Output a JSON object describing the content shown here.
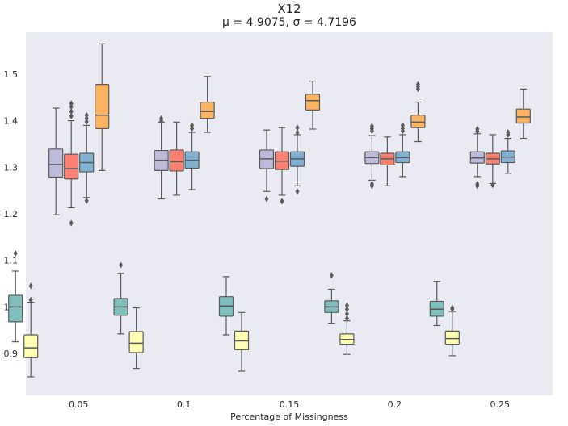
{
  "chart_data": {
    "type": "box",
    "title": "X12",
    "subtitle": "μ = 4.9075, σ = 4.7196",
    "xlabel": "Percentage of Missingness",
    "ylabel": "",
    "categories": [
      "0.05",
      "0.1",
      "0.15",
      "0.2",
      "0.25"
    ],
    "ylim": [
      0.81,
      1.59
    ],
    "yticks": [
      0.9,
      1.0,
      1.1,
      1.2,
      1.3,
      1.4,
      1.5
    ],
    "ytick_labels": [
      "0.9",
      "1.0",
      "1.1",
      "1.2",
      "1.3",
      "1.4",
      "1.5"
    ],
    "grid": false,
    "background": "#eaeaf2",
    "series": [
      {
        "color": "#7fbfbe",
        "boxes": [
          {
            "whislo": 0.925,
            "q1": 0.968,
            "med": 1.0,
            "q3": 1.025,
            "whishi": 1.077,
            "fliers": [
              1.115
            ]
          },
          {
            "whislo": 0.942,
            "q1": 0.982,
            "med": 1.0,
            "q3": 1.018,
            "whishi": 1.072,
            "fliers": [
              1.09
            ]
          },
          {
            "whislo": 0.94,
            "q1": 0.98,
            "med": 1.002,
            "q3": 1.022,
            "whishi": 1.065,
            "fliers": []
          },
          {
            "whislo": 0.965,
            "q1": 0.988,
            "med": 1.0,
            "q3": 1.013,
            "whishi": 1.038,
            "fliers": [
              1.068
            ]
          },
          {
            "whislo": 0.96,
            "q1": 0.98,
            "med": 0.995,
            "q3": 1.012,
            "whishi": 1.055,
            "fliers": []
          }
        ]
      },
      {
        "color": "#ffffb3",
        "boxes": [
          {
            "whislo": 0.85,
            "q1": 0.891,
            "med": 0.912,
            "q3": 0.94,
            "whishi": 1.01,
            "fliers": [
              1.015,
              1.045
            ]
          },
          {
            "whislo": 0.868,
            "q1": 0.902,
            "med": 0.922,
            "q3": 0.947,
            "whishi": 0.998,
            "fliers": []
          },
          {
            "whislo": 0.862,
            "q1": 0.908,
            "med": 0.927,
            "q3": 0.948,
            "whishi": 0.988,
            "fliers": []
          },
          {
            "whislo": 0.898,
            "q1": 0.92,
            "med": 0.93,
            "q3": 0.942,
            "whishi": 0.97,
            "fliers": [
              0.975,
              0.985,
              0.995,
              1.003
            ]
          },
          {
            "whislo": 0.895,
            "q1": 0.92,
            "med": 0.932,
            "q3": 0.948,
            "whishi": 0.99,
            "fliers": [
              0.995,
              0.998
            ]
          }
        ]
      },
      {
        "color": "#bebada",
        "boxes": [
          {
            "whislo": 1.198,
            "q1": 1.279,
            "med": 1.306,
            "q3": 1.339,
            "whishi": 1.427,
            "fliers": []
          },
          {
            "whislo": 1.232,
            "q1": 1.293,
            "med": 1.315,
            "q3": 1.336,
            "whishi": 1.397,
            "fliers": [
              1.4,
              1.405
            ]
          },
          {
            "whislo": 1.248,
            "q1": 1.297,
            "med": 1.318,
            "q3": 1.337,
            "whishi": 1.38,
            "fliers": [
              1.232
            ]
          },
          {
            "whislo": 1.272,
            "q1": 1.308,
            "med": 1.321,
            "q3": 1.333,
            "whishi": 1.368,
            "fliers": [
              1.26,
              1.264,
              1.378,
              1.383,
              1.388
            ]
          },
          {
            "whislo": 1.28,
            "q1": 1.309,
            "med": 1.32,
            "q3": 1.333,
            "whishi": 1.372,
            "fliers": [
              1.26,
              1.264,
              1.377,
              1.382
            ]
          }
        ]
      },
      {
        "color": "#fb8072",
        "boxes": [
          {
            "whislo": 1.213,
            "q1": 1.275,
            "med": 1.297,
            "q3": 1.328,
            "whishi": 1.4,
            "fliers": [
              1.18,
              1.41,
              1.42,
              1.43,
              1.437
            ]
          },
          {
            "whislo": 1.24,
            "q1": 1.292,
            "med": 1.312,
            "q3": 1.337,
            "whishi": 1.397,
            "fliers": []
          },
          {
            "whislo": 1.24,
            "q1": 1.295,
            "med": 1.313,
            "q3": 1.333,
            "whishi": 1.385,
            "fliers": [
              1.227
            ]
          },
          {
            "whislo": 1.26,
            "q1": 1.305,
            "med": 1.318,
            "q3": 1.33,
            "whishi": 1.365,
            "fliers": []
          },
          {
            "whislo": 1.265,
            "q1": 1.307,
            "med": 1.318,
            "q3": 1.33,
            "whishi": 1.37,
            "fliers": [
              1.262
            ]
          }
        ]
      },
      {
        "color": "#80b1d3",
        "boxes": [
          {
            "whislo": 1.235,
            "q1": 1.29,
            "med": 1.31,
            "q3": 1.33,
            "whishi": 1.39,
            "fliers": [
              1.228,
              1.398,
              1.405,
              1.412
            ]
          },
          {
            "whislo": 1.252,
            "q1": 1.298,
            "med": 1.315,
            "q3": 1.333,
            "whishi": 1.375,
            "fliers": [
              1.383,
              1.39
            ]
          },
          {
            "whislo": 1.26,
            "q1": 1.302,
            "med": 1.318,
            "q3": 1.333,
            "whishi": 1.37,
            "fliers": [
              1.248,
              1.375,
              1.385
            ]
          },
          {
            "whislo": 1.28,
            "q1": 1.31,
            "med": 1.321,
            "q3": 1.333,
            "whishi": 1.37,
            "fliers": [
              1.378,
              1.383,
              1.39
            ]
          },
          {
            "whislo": 1.287,
            "q1": 1.31,
            "med": 1.322,
            "q3": 1.335,
            "whishi": 1.362,
            "fliers": [
              1.37,
              1.375
            ]
          }
        ]
      },
      {
        "color": "#fdb462",
        "boxes": [
          {
            "whislo": 1.293,
            "q1": 1.383,
            "med": 1.412,
            "q3": 1.478,
            "whishi": 1.565,
            "fliers": []
          },
          {
            "whislo": 1.375,
            "q1": 1.405,
            "med": 1.42,
            "q3": 1.44,
            "whishi": 1.495,
            "fliers": []
          },
          {
            "whislo": 1.382,
            "q1": 1.423,
            "med": 1.443,
            "q3": 1.457,
            "whishi": 1.485,
            "fliers": []
          },
          {
            "whislo": 1.355,
            "q1": 1.385,
            "med": 1.397,
            "q3": 1.412,
            "whishi": 1.44,
            "fliers": [
              1.468,
              1.473,
              1.478
            ]
          },
          {
            "whislo": 1.362,
            "q1": 1.395,
            "med": 1.408,
            "q3": 1.425,
            "whishi": 1.468,
            "fliers": []
          }
        ]
      }
    ]
  }
}
